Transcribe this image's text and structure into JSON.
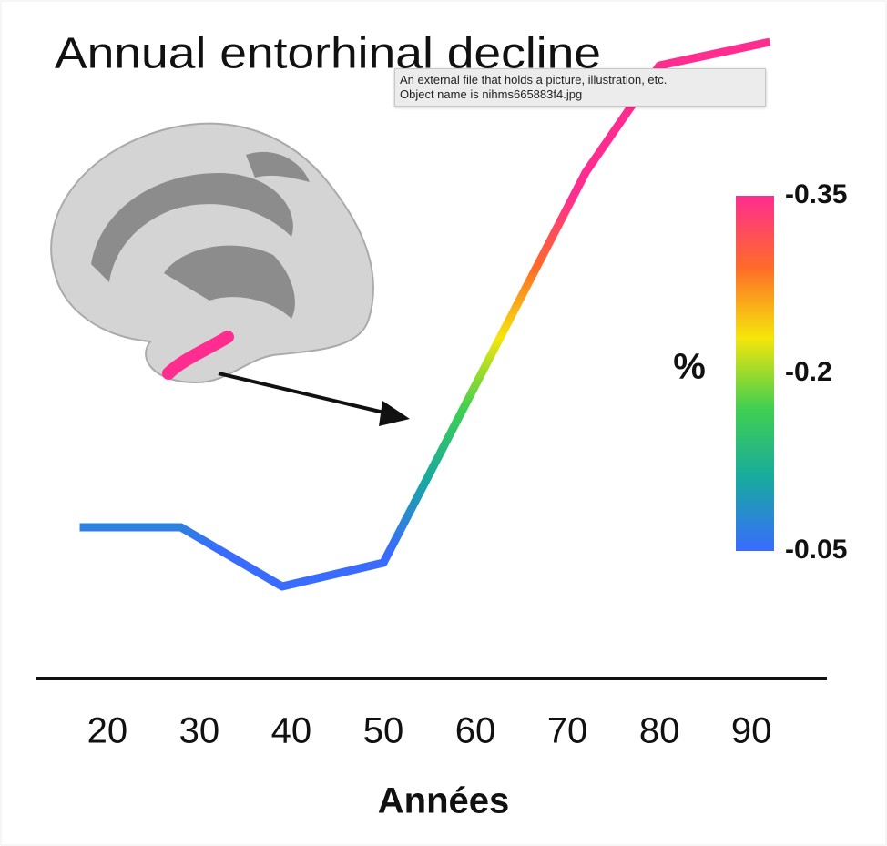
{
  "chart_data": {
    "type": "line",
    "title": "Annual entorhinal decline",
    "ylabel": "%",
    "xlabel": "Années",
    "x": [
      17,
      28,
      39,
      50,
      72,
      80,
      92
    ],
    "values": [
      -0.07,
      -0.07,
      -0.02,
      -0.04,
      -0.37,
      -0.46,
      -0.48
    ],
    "xlim": [
      12,
      98
    ],
    "xticks": [
      20,
      30,
      40,
      50,
      60,
      70,
      80,
      90
    ],
    "ylim": [
      0,
      -0.5
    ],
    "colorbar_ticks": [
      -0.35,
      -0.2,
      -0.05
    ],
    "colors": [
      "#ff2d8f",
      "#ff6a2a",
      "#f5e60a",
      "#3fcf50",
      "#17a9a0",
      "#3a6bff"
    ]
  },
  "tooltip": {
    "lines": [
      "An external file that holds a picture, illustration, etc.",
      "Object name is nihms665883f4.jpg"
    ]
  }
}
